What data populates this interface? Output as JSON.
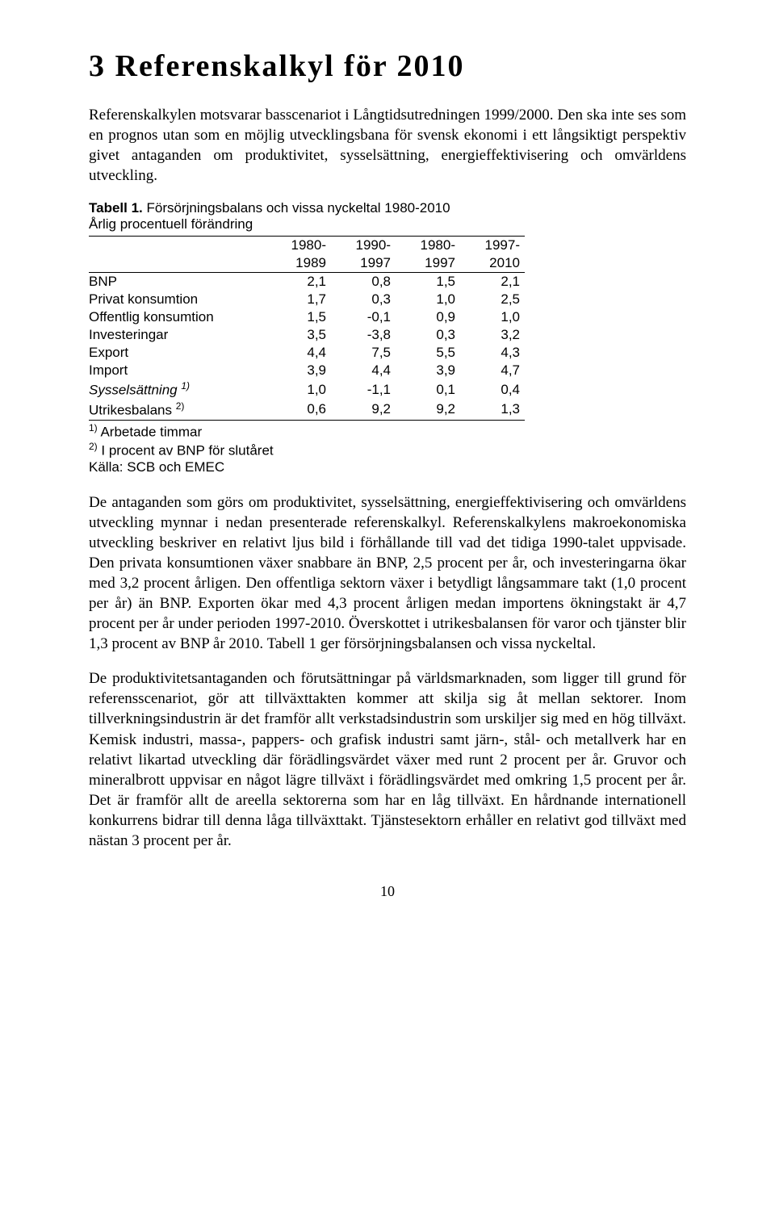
{
  "heading": "3 Referenskalkyl för 2010",
  "intro": "Referenskalkylen motsvarar basscenariot i Långtidsutredningen 1999/2000. Den ska inte ses som en prognos utan som en möjlig utvecklingsbana för svensk ekonomi i ett långsiktigt perspektiv givet antaganden om produktivitet, sysselsättning, energieffektivisering och omvärldens utveckling.",
  "table": {
    "caption_label": "Tabell 1.",
    "caption_text": " Försörjningsbalans och vissa nyckeltal 1980-2010",
    "subcaption": "Årlig procentuell förändring",
    "col_headers_top": [
      "1980-",
      "1990-",
      "1980-",
      "1997-"
    ],
    "col_headers_bot": [
      "1989",
      "1997",
      "1997",
      "2010"
    ],
    "rows": [
      {
        "label": "BNP",
        "vals": [
          "2,1",
          "0,8",
          "1,5",
          "2,1"
        ]
      },
      {
        "label": "Privat konsumtion",
        "vals": [
          "1,7",
          "0,3",
          "1,0",
          "2,5"
        ]
      },
      {
        "label": "Offentlig konsumtion",
        "vals": [
          "1,5",
          "-0,1",
          "0,9",
          "1,0"
        ]
      },
      {
        "label": "Investeringar",
        "vals": [
          "3,5",
          "-3,8",
          "0,3",
          "3,2"
        ]
      },
      {
        "label": "Export",
        "vals": [
          "4,4",
          "7,5",
          "5,5",
          "4,3"
        ]
      },
      {
        "label": "Import",
        "vals": [
          "3,9",
          "4,4",
          "3,9",
          "4,7"
        ]
      },
      {
        "label_html": "Sysselsättning <span class='sup'>1)</span>",
        "italic": true,
        "vals": [
          "1,0",
          "-1,1",
          "0,1",
          "0,4"
        ]
      },
      {
        "label_html": "Utrikesbalans <span class='sup'>2)</span>",
        "vals": [
          "0,6",
          "9,2",
          "9,2",
          "1,3"
        ]
      }
    ],
    "footnotes": [
      "<span class='sup'>1)</span> Arbetade timmar",
      "<span class='sup'>2)</span> I procent av BNP för slutåret",
      "Källa: SCB och EMEC"
    ],
    "col_widths": [
      "220px",
      "80px",
      "80px",
      "80px",
      "80px"
    ]
  },
  "para2": "De antaganden som görs om produktivitet, sysselsättning, energieffektivisering och omvärldens utveckling mynnar i nedan presenterade referenskalkyl. Referenskalkylens makroekonomiska utveckling beskriver en relativt ljus bild i förhållande till vad det tidiga 1990-talet uppvisade. Den privata konsumtionen växer snabbare än BNP, 2,5 procent per år, och investeringarna ökar med 3,2 procent årligen. Den offentliga sektorn växer i betydligt långsammare takt (1,0 procent per år) än BNP. Exporten ökar med 4,3 procent årligen medan importens ökningstakt är 4,7 procent per år under perioden 1997-2010. Överskottet i utrikesbalansen för varor och tjänster blir 1,3 procent av BNP år 2010. Tabell 1 ger försörjningsbalansen och vissa nyckeltal.",
  "para3": "De produktivitetsantaganden och förutsättningar på världsmarknaden, som ligger till grund för referensscenariot, gör att tillväxttakten kommer att skilja sig åt mellan sektorer. Inom tillverkningsindustrin är det framför allt verkstadsindustrin som urskiljer sig med en hög tillväxt. Kemisk industri, massa-, pappers- och grafisk industri samt järn-, stål- och metallverk har en relativt likartad utveckling där förädlingsvärdet växer med runt 2 procent per år. Gruvor och mineralbrott uppvisar en något lägre tillväxt i förädlingsvärdet med omkring 1,5 procent per år. Det är framför allt de areella sektorerna som har en låg tillväxt. En hårdnande internationell konkurrens bidrar till denna låga tillväxttakt. Tjänstesektorn erhåller en relativt god tillväxt med nästan 3 procent per år.",
  "page_number": "10",
  "colors": {
    "text": "#000000",
    "background": "#ffffff",
    "rule": "#000000"
  },
  "fonts": {
    "body_family": "Georgia, Times New Roman, serif",
    "table_family": "Arial, Helvetica, sans-serif",
    "heading_size_pt": 28,
    "body_size_pt": 14,
    "table_size_pt": 13
  }
}
